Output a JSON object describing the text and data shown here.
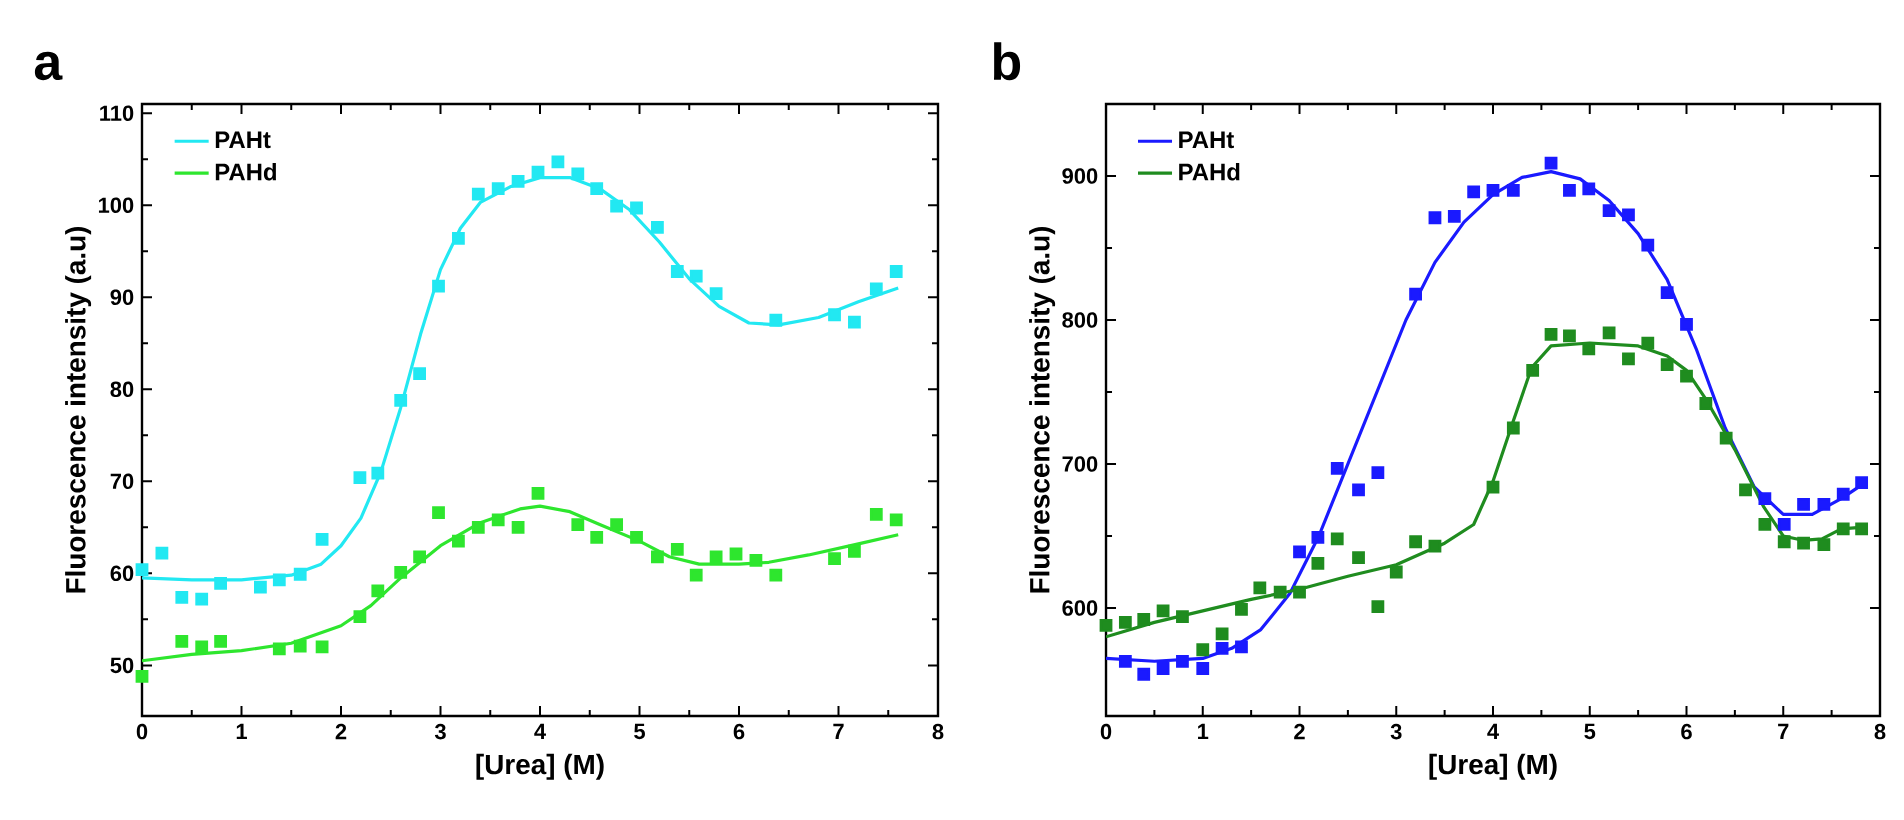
{
  "chart_data": [
    {
      "type": "scatter",
      "title": "a",
      "xlabel": "[Urea] (M)",
      "ylabel": "Fluorescence intensity (a.u)",
      "xlim": [
        0,
        8
      ],
      "ylim": [
        44.5,
        111
      ],
      "xticks": [
        0,
        1,
        2,
        3,
        4,
        5,
        6,
        7,
        8
      ],
      "yticks": [
        50,
        60,
        70,
        80,
        90,
        100,
        110
      ],
      "legend": "top left",
      "grid": false,
      "series": [
        {
          "marker": "square",
          "color": "#22e8f2",
          "x": [
            0,
            0.2,
            0.4,
            0.6,
            0.79,
            1.19,
            1.38,
            1.59,
            1.81,
            2.19,
            2.37,
            2.6,
            2.79,
            2.98,
            3.18,
            3.38,
            3.58,
            3.78,
            3.98,
            4.18,
            4.38,
            4.57,
            4.77,
            4.97,
            5.18,
            5.38,
            5.57,
            5.77,
            6.37,
            6.96,
            7.16,
            7.38,
            7.58
          ],
          "values": [
            60.4,
            62.2,
            57.4,
            57.2,
            58.9,
            58.5,
            59.3,
            59.9,
            63.7,
            70.4,
            70.9,
            78.8,
            81.7,
            91.2,
            96.4,
            101.2,
            101.8,
            102.6,
            103.6,
            104.7,
            103.4,
            101.8,
            99.9,
            99.7,
            97.6,
            92.8,
            92.3,
            90.4,
            87.5,
            88.1,
            87.3,
            90.9,
            92.8
          ]
        },
        {
          "marker": "square",
          "color": "#2ee62e",
          "x": [
            0,
            0.4,
            0.6,
            0.79,
            1.38,
            1.59,
            1.81,
            2.19,
            2.37,
            2.6,
            2.79,
            2.98,
            3.18,
            3.38,
            3.58,
            3.78,
            3.98,
            4.38,
            4.57,
            4.77,
            4.97,
            5.18,
            5.38,
            5.57,
            5.77,
            5.97,
            6.17,
            6.37,
            6.96,
            7.16,
            7.38,
            7.58
          ],
          "values": [
            48.8,
            52.6,
            52.0,
            52.6,
            51.8,
            52.1,
            52.0,
            55.3,
            58.1,
            60.1,
            61.8,
            66.6,
            63.5,
            65.0,
            65.8,
            65.0,
            68.7,
            65.3,
            63.9,
            65.3,
            63.9,
            61.8,
            62.6,
            59.8,
            61.8,
            62.1,
            61.4,
            59.8,
            61.6,
            62.4,
            66.4,
            65.8
          ]
        },
        {
          "type": "line",
          "name": "PAHt",
          "color": "#22e8f2",
          "x": [
            0,
            0.5,
            1,
            1.5,
            1.8,
            2.0,
            2.2,
            2.4,
            2.6,
            2.8,
            3.0,
            3.2,
            3.4,
            3.7,
            4.0,
            4.3,
            4.6,
            4.9,
            5.2,
            5.5,
            5.8,
            6.1,
            6.4,
            6.8,
            7.2,
            7.6
          ],
          "values": [
            59.5,
            59.3,
            59.3,
            59.8,
            61,
            63,
            66,
            71,
            78,
            86,
            93,
            97.5,
            100.3,
            102,
            103,
            103,
            101.8,
            99.5,
            96,
            92,
            89,
            87.2,
            87,
            87.8,
            89.5,
            91
          ]
        },
        {
          "type": "line",
          "name": "PAHd",
          "color": "#2ee62e",
          "x": [
            0,
            0.5,
            1,
            1.5,
            2.0,
            2.3,
            2.6,
            3.0,
            3.4,
            3.8,
            4.0,
            4.3,
            4.6,
            5.0,
            5.3,
            5.6,
            6.0,
            6.3,
            6.7,
            7.2,
            7.6
          ],
          "values": [
            50.5,
            51.2,
            51.6,
            52.4,
            54.3,
            56.5,
            59.5,
            63,
            65.5,
            67,
            67.3,
            66.7,
            65.3,
            63.5,
            61.8,
            61,
            61,
            61.2,
            62,
            63.2,
            64.2
          ]
        }
      ]
    },
    {
      "type": "scatter",
      "title": "b",
      "xlabel": "[Urea] (M)",
      "ylabel": "Fluorescence intensity (a.u)",
      "xlim": [
        0,
        8
      ],
      "ylim": [
        525,
        950
      ],
      "xticks": [
        0,
        1,
        2,
        3,
        4,
        5,
        6,
        7,
        8
      ],
      "yticks": [
        600,
        700,
        800,
        900
      ],
      "legend": "top left",
      "grid": false,
      "series": [
        {
          "marker": "square",
          "color": "#1a1aff",
          "x": [
            0.2,
            0.39,
            0.59,
            0.79,
            1.0,
            1.2,
            1.4,
            2.0,
            2.19,
            2.39,
            2.61,
            2.81,
            3.2,
            3.4,
            3.6,
            3.8,
            4.0,
            4.21,
            4.6,
            4.79,
            4.99,
            5.2,
            5.4,
            5.6,
            5.8,
            6.0,
            6.2,
            6.41,
            6.61,
            6.81,
            7.01,
            7.21,
            7.42,
            7.62,
            7.81
          ],
          "values": [
            563,
            554,
            558,
            563,
            558,
            572,
            573,
            639,
            649,
            697,
            682,
            694,
            818,
            871,
            872,
            889,
            890,
            890,
            909,
            890,
            891,
            876,
            873,
            852,
            819,
            797,
            null,
            null,
            null,
            676,
            658,
            672,
            672,
            679,
            687
          ]
        },
        {
          "marker": "square",
          "color": "#1f8c1f",
          "x": [
            0,
            0.2,
            0.39,
            0.59,
            0.79,
            1.0,
            1.2,
            1.4,
            1.59,
            1.8,
            2.0,
            2.19,
            2.39,
            2.61,
            2.81,
            3.0,
            3.2,
            3.4,
            4.0,
            4.21,
            4.41,
            4.6,
            4.79,
            4.99,
            5.2,
            5.4,
            5.6,
            5.8,
            6.0,
            6.2,
            6.41,
            6.61,
            6.81,
            7.01,
            7.21,
            7.42,
            7.62,
            7.81
          ],
          "values": [
            588,
            590,
            592,
            598,
            594,
            571,
            582,
            599,
            614,
            611,
            611,
            631,
            648,
            635,
            601,
            625,
            646,
            643,
            684,
            725,
            765,
            790,
            789,
            780,
            791,
            773,
            784,
            769,
            761,
            742,
            718,
            682,
            658,
            646,
            645,
            644,
            655,
            655
          ]
        },
        {
          "type": "line",
          "name": "PAHt",
          "color": "#1a1aff",
          "x": [
            0,
            0.5,
            1,
            1.3,
            1.6,
            1.9,
            2.2,
            2.5,
            2.8,
            3.1,
            3.4,
            3.7,
            4.0,
            4.3,
            4.6,
            4.9,
            5.2,
            5.5,
            5.8,
            6.1,
            6.4,
            6.7,
            7.0,
            7.3,
            7.6,
            7.8
          ],
          "values": [
            565,
            563,
            565,
            572,
            585,
            610,
            650,
            700,
            750,
            800,
            840,
            868,
            887,
            899,
            903,
            898,
            883,
            860,
            828,
            780,
            725,
            684,
            665,
            665,
            676,
            685
          ]
        },
        {
          "type": "line",
          "name": "PAHd",
          "color": "#1f8c1f",
          "x": [
            0,
            0.5,
            1,
            1.5,
            2,
            2.5,
            3,
            3.5,
            3.8,
            4.0,
            4.2,
            4.4,
            4.6,
            5.0,
            5.5,
            5.8,
            6.0,
            6.2,
            6.5,
            6.8,
            7.0,
            7.2,
            7.4,
            7.6,
            7.8
          ],
          "values": [
            580,
            590,
            598,
            606,
            613,
            622,
            630,
            645,
            658,
            688,
            728,
            767,
            782,
            784,
            782,
            775,
            765,
            745,
            710,
            670,
            650,
            647,
            648,
            655,
            656
          ]
        }
      ]
    }
  ]
}
